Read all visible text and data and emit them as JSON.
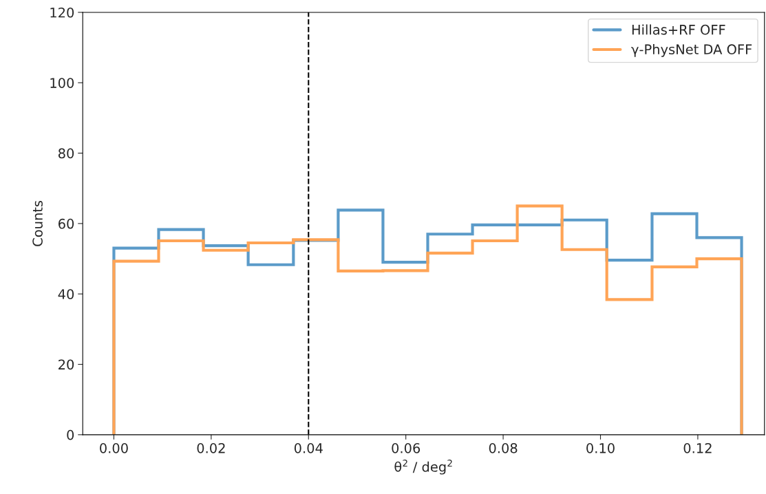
{
  "chart_data": {
    "type": "histogram",
    "xlabel": "θ$^{2}$ / deg$^{2}$",
    "ylabel": "Counts",
    "bins": [
      0,
      0.0092,
      0.0184,
      0.0276,
      0.0369,
      0.0461,
      0.0553,
      0.0645,
      0.0737,
      0.0829,
      0.0921,
      0.1013,
      0.1106,
      0.1198,
      0.129
    ],
    "series": [
      {
        "name": "Hillas+RF OFF",
        "color": "#5b9bc9",
        "values": [
          53,
          58.3,
          53.7,
          48.3,
          55.2,
          63.8,
          49,
          57,
          59.6,
          59.6,
          61,
          49.6,
          62.8,
          56
        ]
      },
      {
        "name": "γ-PhysNet DA OFF",
        "color": "#ffa456",
        "values": [
          49.3,
          55.1,
          52.4,
          54.5,
          55.4,
          46.5,
          46.6,
          51.6,
          55.1,
          65,
          52.6,
          38.4,
          47.7,
          50
        ]
      }
    ],
    "xlim": [
      -0.0064,
      0.1337
    ],
    "xticks": [
      {
        "value": 0,
        "label": "0.00"
      },
      {
        "value": 0.02,
        "label": "0.02"
      },
      {
        "value": 0.04,
        "label": "0.04"
      },
      {
        "value": 0.06,
        "label": "0.06"
      },
      {
        "value": 0.08,
        "label": "0.08"
      },
      {
        "value": 0.1,
        "label": "0.10"
      },
      {
        "value": 0.12,
        "label": "0.12"
      }
    ],
    "ylim": [
      0,
      120
    ],
    "yticks": [
      0,
      20,
      40,
      60,
      80,
      100,
      120
    ],
    "ref_lines": [
      {
        "axis": "x",
        "value": 0.04,
        "color": "#000000",
        "line_style": "dashed"
      }
    ],
    "legend": "top right",
    "grid": false
  }
}
